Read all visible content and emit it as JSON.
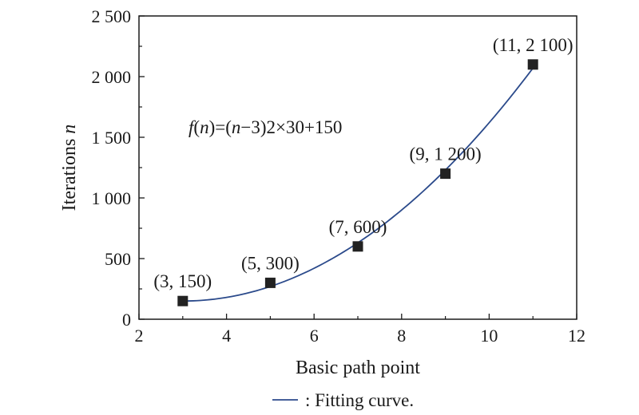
{
  "chart_data": {
    "type": "scatter",
    "xlabel": "Basic path point",
    "ylabel_main": "Iterations ",
    "ylabel_var": "n",
    "xlim": [
      2,
      12
    ],
    "ylim": [
      0,
      2500
    ],
    "x_ticks": [
      2,
      4,
      6,
      8,
      10,
      12
    ],
    "x_tick_labels": [
      "2",
      "4",
      "6",
      "8",
      "10",
      "12"
    ],
    "y_ticks": [
      0,
      500,
      1000,
      1500,
      2000,
      2500
    ],
    "y_tick_labels": [
      "0",
      "500",
      "1 000",
      "1 500",
      "2 000",
      "2 500"
    ],
    "grid": false,
    "series": [
      {
        "marker": "square",
        "color": "#222222",
        "x": [
          3,
          5,
          7,
          9,
          11
        ],
        "y": [
          150,
          300,
          600,
          1200,
          2100
        ],
        "labels": [
          "(3, 150)",
          "(5, 300)",
          "(7, 600)",
          "(9, 1 200)",
          "(11, 2 100)"
        ]
      }
    ],
    "fit": {
      "name": ": Fitting curve.",
      "color": "#2b4a8b",
      "a": 30,
      "h": 3,
      "k": 150,
      "x_range": [
        3,
        11
      ]
    },
    "annotation": {
      "func": "f",
      "paren_open": "(",
      "var": "n",
      "paren_close": ")=(",
      "var2": "n",
      "rest": "−3)2×30+150"
    },
    "legend_position": "bottom-center"
  }
}
